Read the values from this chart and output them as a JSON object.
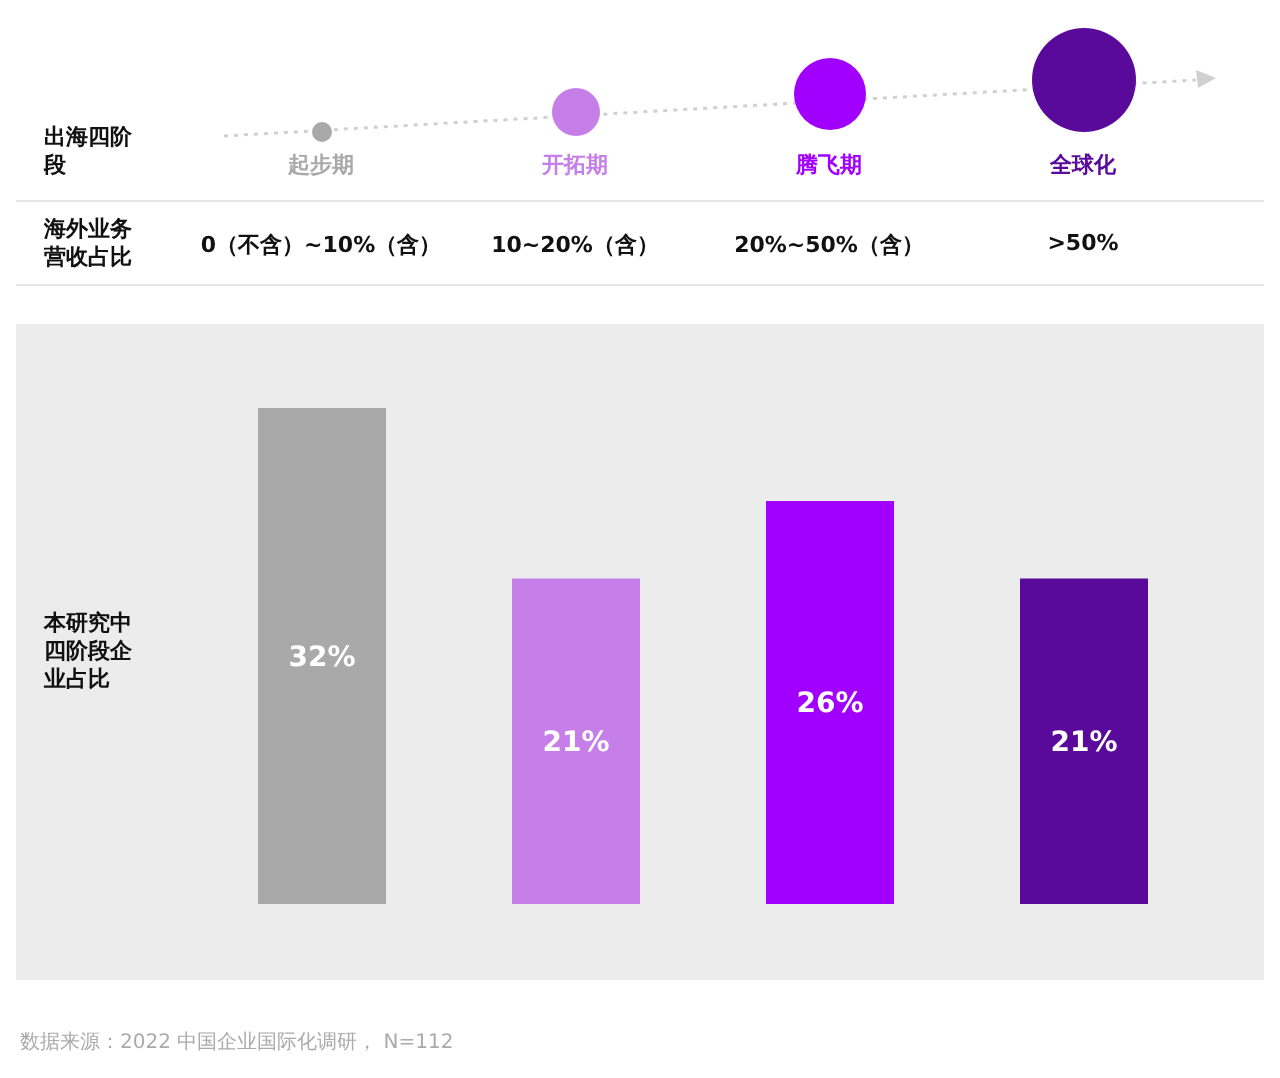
{
  "chart_data": {
    "type": "bar",
    "categories": [
      "起步期",
      "开拓期",
      "腾飞期",
      "全球化"
    ],
    "values": [
      32,
      21,
      26,
      21
    ],
    "colors": [
      "#a9a9a9",
      "#c67fe8",
      "#a100ff",
      "#5a0a9a"
    ],
    "value_labels": [
      "32%",
      "21%",
      "26%",
      "21%"
    ],
    "legend": false,
    "annotations": [
      "0（不含）~10%（含）",
      "10~20%（含）",
      "20%~50%（含）",
      ">50%",
      "出海四阶段",
      "海外业务营收占比",
      "本研究中四阶段企业占比",
      "数据来源：2022 中国企业国际化调研， N=112"
    ]
  }
}
